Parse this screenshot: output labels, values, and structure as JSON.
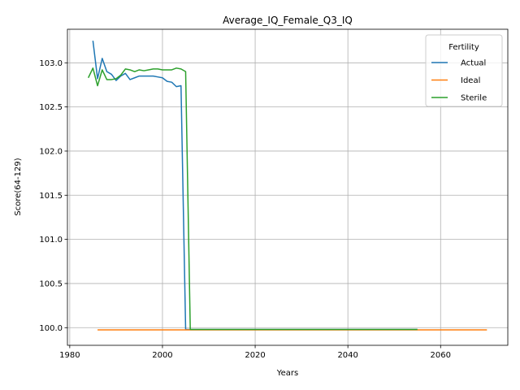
{
  "chart_data": {
    "type": "line",
    "title": "Average_IQ_Female_Q3_IQ",
    "xlabel": "Years",
    "ylabel": "Score(64-129)",
    "xlim": [
      1979.5,
      2074.5
    ],
    "ylim": [
      99.8,
      103.38
    ],
    "x_ticks": [
      1980,
      2000,
      2020,
      2040,
      2060
    ],
    "y_ticks": [
      100.0,
      100.5,
      101.0,
      101.5,
      102.0,
      102.5,
      103.0
    ],
    "x_tick_labels": [
      "1980",
      "2000",
      "2020",
      "2040",
      "2060"
    ],
    "y_tick_labels": [
      "100.0",
      "100.5",
      "101.0",
      "101.5",
      "102.0",
      "102.5",
      "103.0"
    ],
    "grid": true,
    "legend": {
      "title": "Fertility",
      "placement": "top-right",
      "entries": [
        "Actual",
        "Ideal",
        "Sterile"
      ]
    },
    "series": [
      {
        "name": "Actual",
        "color": "#1f77b4",
        "x": [
          1985,
          1986,
          1987,
          1988,
          1989,
          1990,
          1991,
          1992,
          1993,
          1994,
          1995,
          1996,
          1997,
          1998,
          1999,
          2000,
          2001,
          2002,
          2003,
          2004,
          2005,
          2006,
          2055
        ],
        "y": [
          103.25,
          102.82,
          103.05,
          102.9,
          102.87,
          102.8,
          102.85,
          102.88,
          102.81,
          102.83,
          102.85,
          102.85,
          102.85,
          102.85,
          102.84,
          102.83,
          102.79,
          102.78,
          102.73,
          102.74,
          99.98,
          99.98,
          99.98
        ]
      },
      {
        "name": "Ideal",
        "color": "#ff7f0e",
        "x": [
          1986,
          2070
        ],
        "y": [
          99.975,
          99.975
        ]
      },
      {
        "name": "Sterile",
        "color": "#2ca02c",
        "x": [
          1984,
          1985,
          1986,
          1987,
          1988,
          1989,
          1990,
          1991,
          1992,
          1993,
          1994,
          1995,
          1996,
          1997,
          1998,
          1999,
          2000,
          2001,
          2002,
          2003,
          2004,
          2005,
          2006,
          2055
        ],
        "y": [
          102.83,
          102.94,
          102.74,
          102.92,
          102.81,
          102.81,
          102.82,
          102.86,
          102.93,
          102.92,
          102.9,
          102.92,
          102.91,
          102.92,
          102.93,
          102.93,
          102.92,
          102.92,
          102.92,
          102.94,
          102.93,
          102.9,
          99.98,
          99.98
        ]
      }
    ]
  }
}
